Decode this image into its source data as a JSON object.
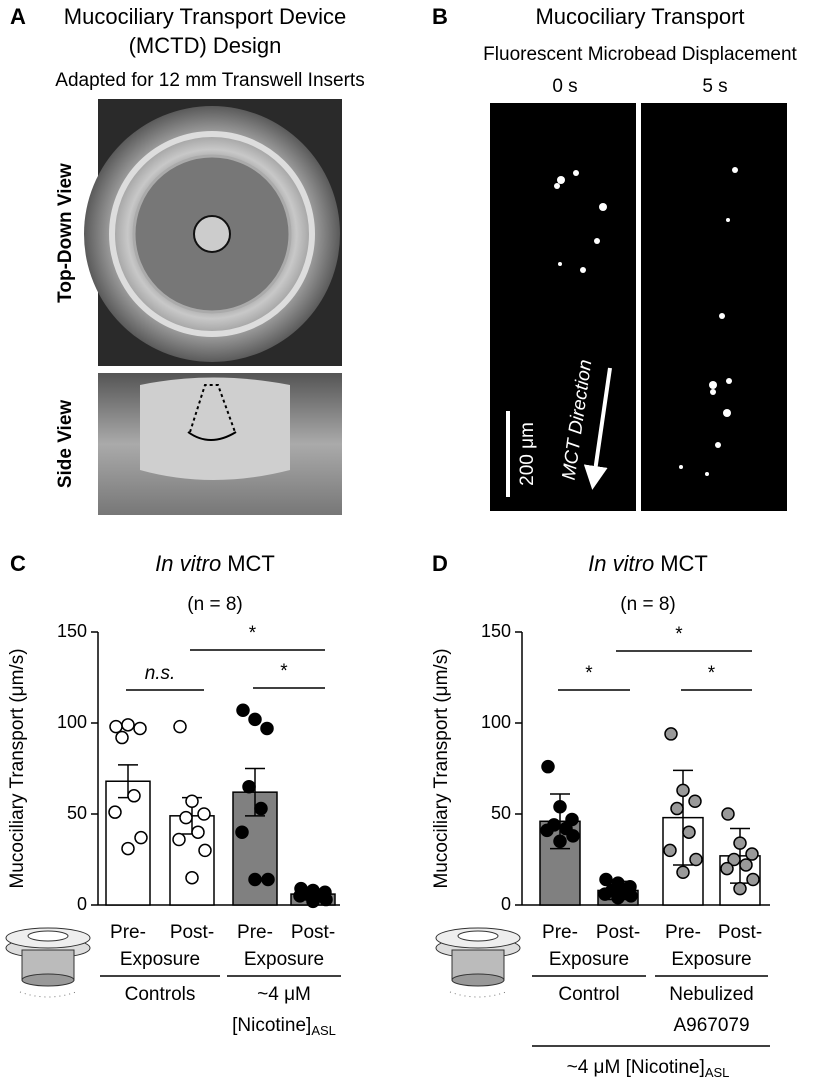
{
  "panels": {
    "A": {
      "label": "A",
      "title": [
        "Mucociliary Transport Device",
        "(MCTD) Design"
      ],
      "subtitle": "Adapted for 12 mm Transwell Inserts",
      "views": [
        "Top-Down View",
        "Side View"
      ]
    },
    "B": {
      "label": "B",
      "title": "Mucociliary Transport",
      "subtitle": "Fluorescent Microbead Displacement",
      "times": [
        "0 s",
        "5 s"
      ],
      "scale_bar": "200 μm",
      "arrow": "MCT Direction"
    }
  },
  "chart_data": [
    {
      "type": "bar",
      "panel": "C",
      "title": {
        "italic": "In vitro",
        "text": "MCT"
      },
      "subtitle": "(n = 8)",
      "y_label": "Mucociliary Transport (μm/s)",
      "ylim": [
        0,
        150
      ],
      "yticks": [
        0,
        50,
        100,
        150
      ],
      "categories": [
        "Pre-",
        "Post-",
        "Pre-",
        "Post-"
      ],
      "values": [
        68,
        49,
        62,
        6
      ],
      "errors": [
        9,
        10,
        13,
        2
      ],
      "colors": [
        "#ffffff",
        "#ffffff",
        "#808080",
        "#808080"
      ],
      "point_colors": [
        "#ffffff",
        "#ffffff",
        "#000000",
        "#000000"
      ],
      "points": [
        [
          98,
          99,
          97,
          92,
          60,
          51,
          37,
          31
        ],
        [
          98,
          57,
          50,
          48,
          40,
          36,
          30,
          15
        ],
        [
          107,
          102,
          97,
          65,
          53,
          40,
          14,
          14
        ],
        [
          9,
          8,
          7,
          6,
          5,
          5,
          3,
          2
        ]
      ],
      "groups": [
        {
          "label": "Exposure",
          "name": [
            "Controls"
          ]
        },
        {
          "label": "Exposure",
          "name": [
            "~4 μM",
            "[Nicotine]"
          ],
          "subscript": "ASL"
        }
      ],
      "annotations": [
        "n.s.",
        "*",
        "*"
      ]
    },
    {
      "type": "bar",
      "panel": "D",
      "title": {
        "italic": "In vitro",
        "text": "MCT"
      },
      "subtitle": "(n = 8)",
      "y_label": "Mucociliary Transport (μm/s)",
      "ylim": [
        0,
        150
      ],
      "yticks": [
        0,
        50,
        100,
        150
      ],
      "categories": [
        "Pre-",
        "Post-",
        "Pre-",
        "Post-"
      ],
      "values": [
        46,
        8,
        48,
        27
      ],
      "errors": [
        15,
        5,
        26,
        15
      ],
      "colors": [
        "#808080",
        "#808080",
        "#ffffff",
        "#ffffff"
      ],
      "point_colors": [
        "#000000",
        "#000000",
        "#999999",
        "#999999"
      ],
      "points": [
        [
          76,
          54,
          47,
          44,
          42,
          41,
          38,
          35
        ],
        [
          14,
          12,
          10,
          8,
          7,
          6,
          5,
          4
        ],
        [
          94,
          63,
          57,
          53,
          40,
          30,
          25,
          18
        ],
        [
          50,
          34,
          28,
          25,
          22,
          20,
          14,
          9
        ]
      ],
      "groups": [
        {
          "label": "Exposure",
          "name": [
            "Control"
          ]
        },
        {
          "label": "Exposure",
          "name": [
            "Nebulized",
            "A967079"
          ]
        }
      ],
      "footer": {
        "text": "~4 μM [Nicotine]",
        "subscript": "ASL"
      },
      "annotations": [
        "*",
        "*",
        "*"
      ]
    }
  ]
}
